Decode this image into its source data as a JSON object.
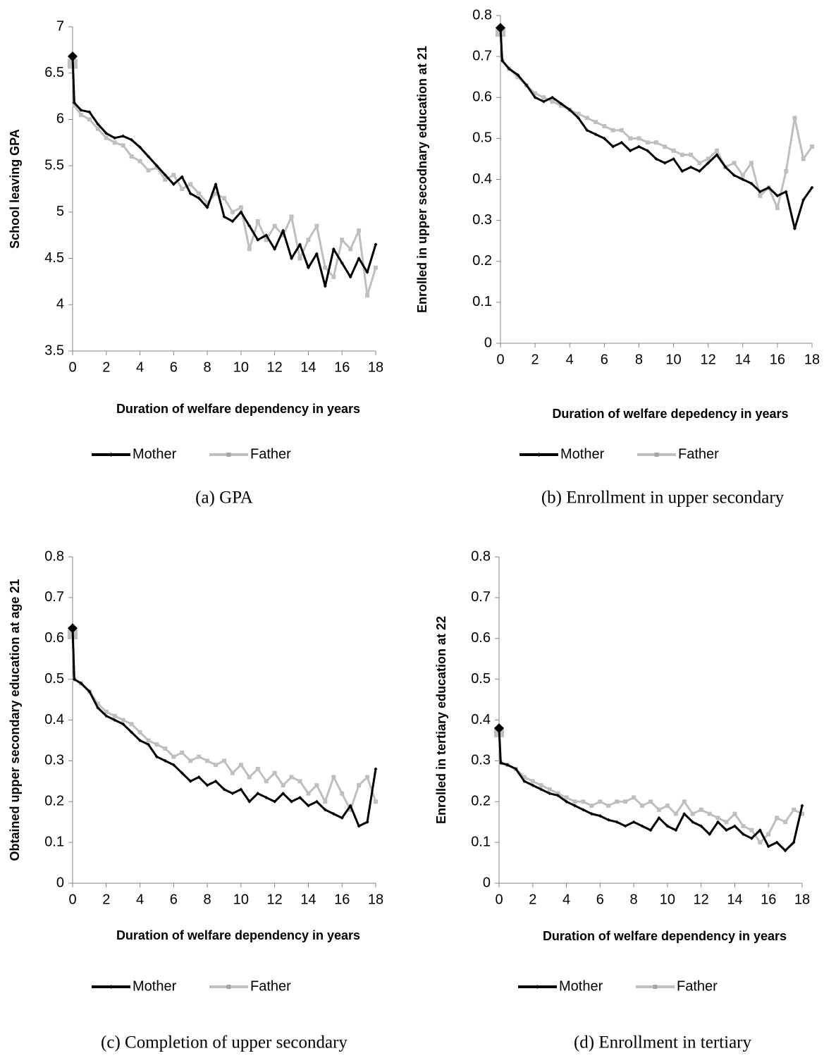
{
  "chart_data": [
    {
      "type": "line",
      "caption": "(a) GPA",
      "x_label": "Duration of welfare dependency in years",
      "y_label": "School leaving GPA",
      "x": [
        0,
        0.1,
        0.5,
        1,
        1.5,
        2,
        2.5,
        3,
        3.5,
        4,
        4.5,
        5,
        5.5,
        6,
        6.5,
        7,
        7.5,
        8,
        8.5,
        9,
        9.5,
        10,
        10.5,
        11,
        11.5,
        12,
        12.5,
        13,
        13.5,
        14,
        14.5,
        15,
        15.5,
        16,
        16.5,
        17,
        17.5,
        18
      ],
      "series": [
        {
          "name": "Mother",
          "color": "#000000",
          "values": [
            6.68,
            6.18,
            6.1,
            6.08,
            5.95,
            5.85,
            5.8,
            5.82,
            5.78,
            5.7,
            5.6,
            5.5,
            5.4,
            5.3,
            5.38,
            5.2,
            5.15,
            5.05,
            5.3,
            4.95,
            4.9,
            5.0,
            4.85,
            4.7,
            4.75,
            4.6,
            4.8,
            4.5,
            4.65,
            4.4,
            4.55,
            4.2,
            4.6,
            4.45,
            4.3,
            4.5,
            4.35,
            4.65
          ]
        },
        {
          "name": "Father",
          "color": "#bfbfbf",
          "values": [
            6.6,
            6.15,
            6.05,
            6.0,
            5.9,
            5.8,
            5.75,
            5.72,
            5.6,
            5.55,
            5.45,
            5.48,
            5.35,
            5.4,
            5.25,
            5.3,
            5.2,
            5.1,
            5.2,
            5.15,
            5.0,
            5.05,
            4.6,
            4.9,
            4.7,
            4.85,
            4.75,
            4.95,
            4.5,
            4.7,
            4.85,
            4.4,
            4.3,
            4.7,
            4.6,
            4.8,
            4.1,
            4.4
          ]
        }
      ],
      "xlim": [
        0,
        18
      ],
      "xticks": [
        0,
        2,
        4,
        6,
        8,
        10,
        12,
        14,
        16,
        18
      ],
      "ylim": [
        3.5,
        7
      ],
      "yticks": [
        3.5,
        4,
        4.5,
        5,
        5.5,
        6,
        6.5,
        7
      ]
    },
    {
      "type": "line",
      "caption": "(b) Enrollment in upper secondary",
      "x_label": "Duration of welfare depedency in years",
      "y_label": "Enrolled in upper secodnary education at 21",
      "x": [
        0,
        0.1,
        0.5,
        1,
        1.5,
        2,
        2.5,
        3,
        3.5,
        4,
        4.5,
        5,
        5.5,
        6,
        6.5,
        7,
        7.5,
        8,
        8.5,
        9,
        9.5,
        10,
        10.5,
        11,
        11.5,
        12,
        12.5,
        13,
        13.5,
        14,
        14.5,
        15,
        15.5,
        16,
        16.5,
        17,
        17.5,
        18
      ],
      "series": [
        {
          "name": "Mother",
          "color": "#000000",
          "values": [
            0.77,
            0.69,
            0.67,
            0.655,
            0.63,
            0.6,
            0.59,
            0.6,
            0.585,
            0.57,
            0.55,
            0.52,
            0.51,
            0.5,
            0.48,
            0.49,
            0.47,
            0.48,
            0.47,
            0.45,
            0.44,
            0.45,
            0.42,
            0.43,
            0.42,
            0.44,
            0.46,
            0.43,
            0.41,
            0.4,
            0.39,
            0.37,
            0.38,
            0.36,
            0.37,
            0.28,
            0.35,
            0.38
          ]
        },
        {
          "name": "Father",
          "color": "#bfbfbf",
          "values": [
            0.76,
            0.69,
            0.67,
            0.65,
            0.63,
            0.61,
            0.6,
            0.59,
            0.58,
            0.57,
            0.56,
            0.55,
            0.54,
            0.53,
            0.52,
            0.52,
            0.5,
            0.5,
            0.49,
            0.49,
            0.48,
            0.47,
            0.46,
            0.46,
            0.44,
            0.45,
            0.47,
            0.43,
            0.44,
            0.41,
            0.44,
            0.36,
            0.38,
            0.33,
            0.42,
            0.55,
            0.45,
            0.48
          ]
        }
      ],
      "xlim": [
        0,
        18
      ],
      "xticks": [
        0,
        2,
        4,
        6,
        8,
        10,
        12,
        14,
        16,
        18
      ],
      "ylim": [
        0,
        0.8
      ],
      "yticks": [
        0,
        0.1,
        0.2,
        0.3,
        0.4,
        0.5,
        0.6,
        0.7,
        0.8
      ]
    },
    {
      "type": "line",
      "caption": "(c) Completion of upper secondary",
      "x_label": "Duration of welfare dependency in years",
      "y_label": "Obtained upper secondary education at age 21",
      "x": [
        0,
        0.1,
        0.5,
        1,
        1.5,
        2,
        2.5,
        3,
        3.5,
        4,
        4.5,
        5,
        5.5,
        6,
        6.5,
        7,
        7.5,
        8,
        8.5,
        9,
        9.5,
        10,
        10.5,
        11,
        11.5,
        12,
        12.5,
        13,
        13.5,
        14,
        14.5,
        15,
        15.5,
        16,
        16.5,
        17,
        17.5,
        18
      ],
      "series": [
        {
          "name": "Mother",
          "color": "#000000",
          "values": [
            0.625,
            0.5,
            0.49,
            0.47,
            0.43,
            0.41,
            0.4,
            0.39,
            0.37,
            0.35,
            0.34,
            0.31,
            0.3,
            0.29,
            0.27,
            0.25,
            0.26,
            0.24,
            0.25,
            0.23,
            0.22,
            0.23,
            0.2,
            0.22,
            0.21,
            0.2,
            0.22,
            0.2,
            0.21,
            0.19,
            0.2,
            0.18,
            0.17,
            0.16,
            0.19,
            0.14,
            0.15,
            0.28
          ]
        },
        {
          "name": "Father",
          "color": "#bfbfbf",
          "values": [
            0.61,
            0.5,
            0.49,
            0.47,
            0.44,
            0.42,
            0.41,
            0.4,
            0.39,
            0.37,
            0.35,
            0.34,
            0.33,
            0.31,
            0.32,
            0.3,
            0.31,
            0.3,
            0.29,
            0.3,
            0.27,
            0.29,
            0.26,
            0.28,
            0.25,
            0.27,
            0.24,
            0.26,
            0.25,
            0.22,
            0.24,
            0.2,
            0.26,
            0.22,
            0.18,
            0.24,
            0.26,
            0.2
          ]
        }
      ],
      "xlim": [
        0,
        18
      ],
      "xticks": [
        0,
        2,
        4,
        6,
        8,
        10,
        12,
        14,
        16,
        18
      ],
      "ylim": [
        0,
        0.8
      ],
      "yticks": [
        0,
        0.1,
        0.2,
        0.3,
        0.4,
        0.5,
        0.6,
        0.7,
        0.8
      ]
    },
    {
      "type": "line",
      "caption": "(d) Enrollment in tertiary",
      "x_label": "Duration of welfare dependency in years",
      "y_label": "Enrolled in tertiary education at 22",
      "x": [
        0,
        0.1,
        0.5,
        1,
        1.5,
        2,
        2.5,
        3,
        3.5,
        4,
        4.5,
        5,
        5.5,
        6,
        6.5,
        7,
        7.5,
        8,
        8.5,
        9,
        9.5,
        10,
        10.5,
        11,
        11.5,
        12,
        12.5,
        13,
        13.5,
        14,
        14.5,
        15,
        15.5,
        16,
        16.5,
        17,
        17.5,
        18
      ],
      "series": [
        {
          "name": "Mother",
          "color": "#000000",
          "values": [
            0.38,
            0.295,
            0.29,
            0.28,
            0.25,
            0.24,
            0.23,
            0.22,
            0.215,
            0.2,
            0.19,
            0.18,
            0.17,
            0.165,
            0.155,
            0.15,
            0.14,
            0.15,
            0.14,
            0.13,
            0.16,
            0.14,
            0.13,
            0.17,
            0.15,
            0.14,
            0.12,
            0.15,
            0.13,
            0.14,
            0.12,
            0.11,
            0.13,
            0.09,
            0.1,
            0.08,
            0.1,
            0.19
          ]
        },
        {
          "name": "Father",
          "color": "#bfbfbf",
          "values": [
            0.37,
            0.295,
            0.29,
            0.28,
            0.26,
            0.25,
            0.24,
            0.23,
            0.22,
            0.21,
            0.2,
            0.2,
            0.19,
            0.2,
            0.19,
            0.2,
            0.2,
            0.21,
            0.19,
            0.2,
            0.18,
            0.19,
            0.17,
            0.2,
            0.17,
            0.18,
            0.17,
            0.16,
            0.15,
            0.17,
            0.14,
            0.13,
            0.1,
            0.12,
            0.16,
            0.15,
            0.18,
            0.17
          ]
        }
      ],
      "xlim": [
        0,
        18
      ],
      "xticks": [
        0,
        2,
        4,
        6,
        8,
        10,
        12,
        14,
        16,
        18
      ],
      "ylim": [
        0,
        0.8
      ],
      "yticks": [
        0,
        0.1,
        0.2,
        0.3,
        0.4,
        0.5,
        0.6,
        0.7,
        0.8
      ]
    }
  ]
}
